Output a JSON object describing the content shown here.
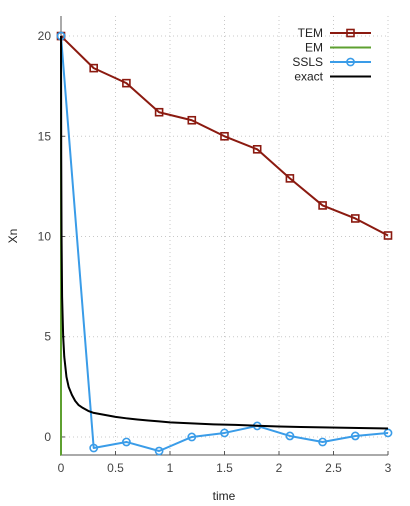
{
  "chart_data": {
    "type": "line",
    "xlabel": "time",
    "ylabel": "Xn",
    "xlim": [
      0,
      3
    ],
    "ylim": [
      -0.9,
      21
    ],
    "xticks": [
      0,
      0.5,
      1,
      1.5,
      2,
      2.5,
      3
    ],
    "xtick_labels": [
      "0",
      "0.5",
      "1",
      "1.5",
      "2",
      "2.5",
      "3"
    ],
    "yticks": [
      0,
      5,
      10,
      15,
      20
    ],
    "ytick_labels": [
      "0",
      "5",
      "10",
      "15",
      "20"
    ],
    "grid": true,
    "legend": "top-right",
    "series": [
      {
        "name": "TEM",
        "color": "#8b1a10",
        "marker": "square",
        "x": [
          0,
          0.3,
          0.6,
          0.9,
          1.2,
          1.5,
          1.8,
          2.1,
          2.4,
          2.7,
          3.0
        ],
        "values": [
          20,
          18.4,
          17.65,
          16.2,
          15.8,
          15.0,
          14.35,
          12.9,
          11.55,
          10.9,
          10.05
        ]
      },
      {
        "name": "EM",
        "color": "#5ea030",
        "marker": "none",
        "x": [
          0,
          0,
          0.0005
        ],
        "values": [
          20,
          -0.9,
          -0.9
        ]
      },
      {
        "name": "SSLS",
        "color": "#3a9ce8",
        "marker": "circle",
        "x": [
          0,
          0.3,
          0.6,
          0.9,
          1.2,
          1.5,
          1.8,
          2.1,
          2.4,
          2.7,
          3.0
        ],
        "values": [
          20,
          -0.55,
          -0.25,
          -0.7,
          0.0,
          0.2,
          0.55,
          0.05,
          -0.25,
          0.05,
          0.2
        ]
      },
      {
        "name": "exact",
        "color": "#000000",
        "marker": "none",
        "x": [
          0,
          0.002,
          0.005,
          0.01,
          0.02,
          0.03,
          0.05,
          0.07,
          0.1,
          0.13,
          0.16,
          0.2,
          0.25,
          0.3,
          0.35,
          0.4,
          0.5,
          0.6,
          0.7,
          0.8,
          0.9,
          1.0,
          1.2,
          1.4,
          1.6,
          1.8,
          2.0,
          2.2,
          2.4,
          2.6,
          2.8,
          3.0
        ],
        "values": [
          20,
          14,
          10,
          7.0,
          5.0,
          4.0,
          3.0,
          2.5,
          2.1,
          1.8,
          1.6,
          1.45,
          1.3,
          1.2,
          1.15,
          1.1,
          1.0,
          0.93,
          0.87,
          0.82,
          0.78,
          0.73,
          0.68,
          0.63,
          0.6,
          0.56,
          0.52,
          0.5,
          0.48,
          0.46,
          0.44,
          0.42
        ]
      }
    ]
  }
}
